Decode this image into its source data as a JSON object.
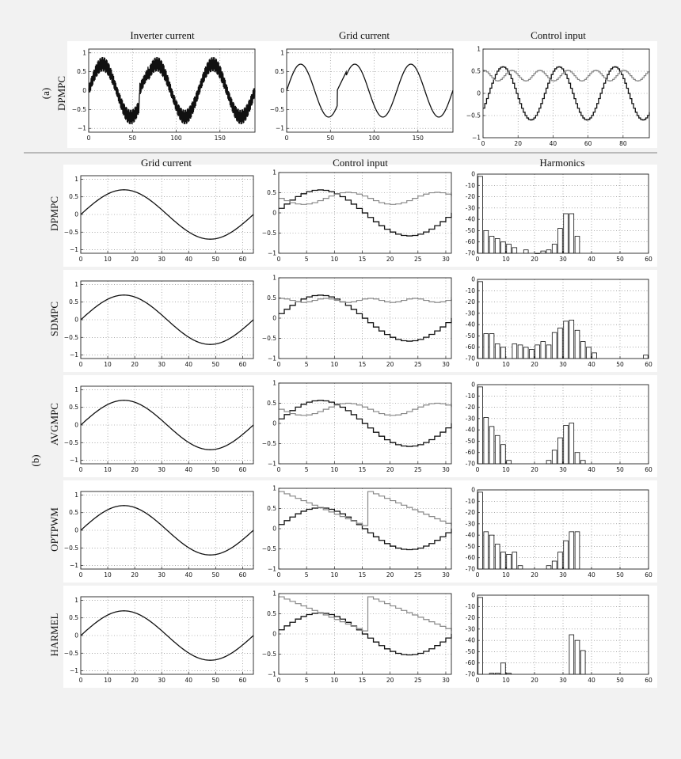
{
  "figure": {
    "section_labels": {
      "a": "(a)",
      "b": "(b)"
    },
    "top_column_titles": [
      "Inverter current",
      "Grid current",
      "Control input"
    ],
    "bottom_column_titles": [
      "Grid current",
      "Control input",
      "Harmonics"
    ],
    "methods_a": "DPMPC",
    "methods_b": [
      "DPMPC",
      "SDMPC",
      "AVGMPC",
      "OPTPWM",
      "HARMEL"
    ]
  },
  "chart_data": [
    {
      "id": "a-inverter",
      "type": "line",
      "title": "Inverter current",
      "row_label": "DPMPC",
      "xlim": [
        0,
        190
      ],
      "ylim": [
        -1.1,
        1.1
      ],
      "xticks": [
        0,
        50,
        100,
        150
      ],
      "yticks": [
        1,
        0.5,
        0,
        -0.5,
        -1
      ],
      "ytick_labels": [
        "1",
        "0.5",
        "0",
        "−0.5",
        "−1"
      ],
      "series": [
        {
          "color": "#111111",
          "form": "sine + switching ripple",
          "amplitude": 0.7,
          "period_samples": 64,
          "ripple_amplitude": 0.2,
          "fault": {
            "start": 58,
            "end": 68,
            "kind": "phase reset"
          }
        }
      ],
      "grid": true
    },
    {
      "id": "a-grid",
      "type": "line",
      "title": "Grid current",
      "xlim": [
        0,
        190
      ],
      "ylim": [
        -1.1,
        1.1
      ],
      "xticks": [
        0,
        50,
        100,
        150
      ],
      "yticks": [
        1,
        0.5,
        0,
        -0.5,
        -1
      ],
      "ytick_labels": [
        "1",
        "0.5",
        "0",
        "−0.5",
        "−1"
      ],
      "series": [
        {
          "color": "#111111",
          "form": "sine",
          "amplitude": 0.7,
          "period_samples": 64,
          "fault": {
            "start": 58,
            "end": 68,
            "kind": "phase reset"
          }
        }
      ],
      "grid": true
    },
    {
      "id": "a-control",
      "type": "line",
      "title": "Control input",
      "xlim": [
        0,
        95
      ],
      "ylim": [
        -1,
        1
      ],
      "xticks": [
        0,
        20,
        40,
        60,
        80
      ],
      "yticks": [
        1,
        0.5,
        0,
        -0.5,
        -1
      ],
      "ytick_labels": [
        "1",
        "0.5",
        "0",
        "−0.5",
        "−1"
      ],
      "series": [
        {
          "color": "#111111",
          "form": "staircase sine",
          "amplitude": 0.6,
          "period_samples": 32,
          "phase_shift": 4
        },
        {
          "color": "#888888",
          "form": "staircase ripple",
          "offset": 0.4,
          "amplitude": 0.12
        }
      ],
      "grid": true
    },
    {
      "id": "b-dpmpc-grid",
      "type": "line",
      "row_label": "DPMPC",
      "xlim": [
        0,
        64
      ],
      "ylim": [
        -1.1,
        1.1
      ],
      "xticks": [
        0,
        10,
        20,
        30,
        40,
        50,
        60
      ],
      "yticks": [
        1,
        0.5,
        0,
        -0.5,
        -1
      ],
      "ytick_labels": [
        "1",
        "0.5",
        "0",
        "−0.5",
        "−1"
      ],
      "series": [
        {
          "color": "#111111",
          "form": "sine",
          "amplitude": 0.7,
          "period_samples": 64
        }
      ],
      "grid": true
    },
    {
      "id": "b-dpmpc-control",
      "type": "line",
      "xlim": [
        0,
        31
      ],
      "ylim": [
        -1,
        1
      ],
      "xticks": [
        0,
        5,
        10,
        15,
        20,
        25,
        30
      ],
      "yticks": [
        1,
        0.5,
        0,
        -0.5,
        -1
      ],
      "ytick_labels": [
        "1",
        "0.5",
        "0",
        "−0.5",
        "−1"
      ],
      "series": [
        {
          "color": "#111111",
          "form": "staircase sine",
          "amplitude": 0.57,
          "period_samples": 32
        },
        {
          "color": "#888888",
          "form": "staircase ripple",
          "offset": 0.36,
          "amplitude": 0.15,
          "period_samples": 16,
          "phase_shift": 12
        }
      ],
      "grid": true
    },
    {
      "id": "b-dpmpc-harm",
      "type": "bar",
      "xlim": [
        0,
        60
      ],
      "ylim": [
        -70,
        0
      ],
      "xticks": [
        0,
        10,
        20,
        30,
        40,
        50,
        60
      ],
      "yticks": [
        0,
        -10,
        -20,
        -30,
        -40,
        -50,
        -60,
        -70
      ],
      "x": [
        1,
        3,
        5,
        7,
        9,
        11,
        13,
        17,
        21,
        23,
        25,
        27,
        29,
        31,
        33,
        35
      ],
      "values": [
        -2,
        -50,
        -55,
        -57,
        -60,
        -62,
        -65,
        -67,
        -70,
        -68,
        -67,
        -62,
        -48,
        -35,
        -35,
        -55
      ],
      "grid": true
    },
    {
      "id": "b-sdmpc-grid",
      "type": "line",
      "row_label": "SDMPC",
      "xlim": [
        0,
        64
      ],
      "ylim": [
        -1.1,
        1.1
      ],
      "xticks": [
        0,
        10,
        20,
        30,
        40,
        50,
        60
      ],
      "yticks": [
        1,
        0.5,
        0,
        -0.5,
        -1
      ],
      "ytick_labels": [
        "1",
        "0.5",
        "0",
        "−0.5",
        "−1"
      ],
      "series": [
        {
          "color": "#111111",
          "form": "sine",
          "amplitude": 0.7,
          "period_samples": 64
        }
      ],
      "grid": true
    },
    {
      "id": "b-sdmpc-control",
      "type": "line",
      "xlim": [
        0,
        31
      ],
      "ylim": [
        -1,
        1
      ],
      "xticks": [
        0,
        5,
        10,
        15,
        20,
        25,
        30
      ],
      "yticks": [
        1,
        0.5,
        0,
        -0.5,
        -1
      ],
      "ytick_labels": [
        "1",
        "0.5",
        "0",
        "−0.5",
        "−1"
      ],
      "series": [
        {
          "color": "#111111",
          "form": "staircase sine",
          "amplitude": 0.57,
          "period_samples": 32
        },
        {
          "color": "#888888",
          "form": "staircase ripple",
          "offset": 0.44,
          "amplitude": 0.05,
          "period_samples": 8
        }
      ],
      "grid": true
    },
    {
      "id": "b-sdmpc-harm",
      "type": "bar",
      "xlim": [
        0,
        60
      ],
      "ylim": [
        -70,
        0
      ],
      "xticks": [
        0,
        10,
        20,
        30,
        40,
        50,
        60
      ],
      "yticks": [
        0,
        -10,
        -20,
        -30,
        -40,
        -50,
        -60,
        -70
      ],
      "x": [
        1,
        3,
        5,
        7,
        9,
        13,
        15,
        17,
        19,
        21,
        23,
        25,
        27,
        29,
        31,
        33,
        35,
        37,
        39,
        41,
        59
      ],
      "values": [
        -2,
        -48,
        -48,
        -57,
        -60,
        -57,
        -58,
        -60,
        -62,
        -58,
        -55,
        -58,
        -47,
        -43,
        -37,
        -36,
        -45,
        -55,
        -60,
        -65,
        -67
      ],
      "grid": true
    },
    {
      "id": "b-avgmpc-grid",
      "type": "line",
      "row_label": "AVGMPC",
      "xlim": [
        0,
        64
      ],
      "ylim": [
        -1.1,
        1.1
      ],
      "xticks": [
        0,
        10,
        20,
        30,
        40,
        50,
        60
      ],
      "yticks": [
        1,
        0.5,
        0,
        -0.5,
        -1
      ],
      "ytick_labels": [
        "1",
        "0.5",
        "0",
        "−0.5",
        "−1"
      ],
      "series": [
        {
          "color": "#111111",
          "form": "sine",
          "amplitude": 0.7,
          "period_samples": 64
        }
      ],
      "grid": true
    },
    {
      "id": "b-avgmpc-control",
      "type": "line",
      "xlim": [
        0,
        31
      ],
      "ylim": [
        -1,
        1
      ],
      "xticks": [
        0,
        5,
        10,
        15,
        20,
        25,
        30
      ],
      "yticks": [
        1,
        0.5,
        0,
        -0.5,
        -1
      ],
      "ytick_labels": [
        "1",
        "0.5",
        "0",
        "−0.5",
        "−1"
      ],
      "series": [
        {
          "color": "#111111",
          "form": "staircase sine",
          "amplitude": 0.57,
          "period_samples": 32
        },
        {
          "color": "#888888",
          "form": "staircase ripple",
          "offset": 0.35,
          "amplitude": 0.15,
          "period_samples": 16,
          "phase_shift": 12
        }
      ],
      "grid": true
    },
    {
      "id": "b-avgmpc-harm",
      "type": "bar",
      "xlim": [
        0,
        60
      ],
      "ylim": [
        -70,
        0
      ],
      "xticks": [
        0,
        10,
        20,
        30,
        40,
        50,
        60
      ],
      "yticks": [
        0,
        -10,
        -20,
        -30,
        -40,
        -50,
        -60,
        -70
      ],
      "x": [
        1,
        3,
        5,
        7,
        9,
        11,
        25,
        27,
        29,
        31,
        33,
        35,
        37
      ],
      "values": [
        -2,
        -29,
        -37,
        -45,
        -53,
        -67,
        -67,
        -58,
        -47,
        -36,
        -34,
        -60,
        -67
      ],
      "grid": true
    },
    {
      "id": "b-optpwm-grid",
      "type": "line",
      "row_label": "OPTPWM",
      "xlim": [
        0,
        64
      ],
      "ylim": [
        -1.1,
        1.1
      ],
      "xticks": [
        0,
        10,
        20,
        30,
        40,
        50,
        60
      ],
      "yticks": [
        1,
        0.5,
        0,
        -0.5,
        -1
      ],
      "ytick_labels": [
        "1",
        "0.5",
        "0",
        "−0.5",
        "−1"
      ],
      "series": [
        {
          "color": "#111111",
          "form": "sine",
          "amplitude": 0.7,
          "period_samples": 64
        }
      ],
      "grid": true
    },
    {
      "id": "b-optpwm-control",
      "type": "line",
      "xlim": [
        0,
        31
      ],
      "ylim": [
        -1,
        1
      ],
      "xticks": [
        0,
        5,
        10,
        15,
        20,
        25,
        30
      ],
      "yticks": [
        1,
        0.5,
        0,
        -0.5,
        -1
      ],
      "ytick_labels": [
        "1",
        "0.5",
        "0",
        "−0.5",
        "−1"
      ],
      "series": [
        {
          "color": "#111111",
          "form": "staircase sine",
          "amplitude": 0.52,
          "period_samples": 32
        },
        {
          "color": "#888888",
          "form": "sawtooth staircase",
          "start": 0.92,
          "end": 0.02,
          "reset_at": 16
        }
      ],
      "grid": true
    },
    {
      "id": "b-optpwm-harm",
      "type": "bar",
      "xlim": [
        0,
        60
      ],
      "ylim": [
        -70,
        0
      ],
      "xticks": [
        0,
        10,
        20,
        30,
        40,
        50,
        60
      ],
      "yticks": [
        0,
        -10,
        -20,
        -30,
        -40,
        -50,
        -60,
        -70
      ],
      "x": [
        1,
        3,
        5,
        7,
        9,
        11,
        13,
        15,
        25,
        27,
        29,
        31,
        33,
        35
      ],
      "values": [
        -2,
        -37,
        -40,
        -48,
        -55,
        -57,
        -55,
        -67,
        -67,
        -63,
        -55,
        -45,
        -37,
        -37
      ],
      "grid": true
    },
    {
      "id": "b-harmel-grid",
      "type": "line",
      "row_label": "HARMEL",
      "xlim": [
        0,
        64
      ],
      "ylim": [
        -1.1,
        1.1
      ],
      "xticks": [
        0,
        10,
        20,
        30,
        40,
        50,
        60
      ],
      "yticks": [
        1,
        0.5,
        0,
        -0.5,
        -1
      ],
      "ytick_labels": [
        "1",
        "0.5",
        "0",
        "−0.5",
        "−1"
      ],
      "series": [
        {
          "color": "#111111",
          "form": "sine",
          "amplitude": 0.7,
          "period_samples": 64
        }
      ],
      "grid": true
    },
    {
      "id": "b-harmel-control",
      "type": "line",
      "xlim": [
        0,
        31
      ],
      "ylim": [
        -1,
        1
      ],
      "xticks": [
        0,
        5,
        10,
        15,
        20,
        25,
        30
      ],
      "yticks": [
        1,
        0.5,
        0,
        -0.5,
        -1
      ],
      "ytick_labels": [
        "1",
        "0.5",
        "0",
        "−0.5",
        "−1"
      ],
      "series": [
        {
          "color": "#111111",
          "form": "staircase sine",
          "amplitude": 0.52,
          "period_samples": 32
        },
        {
          "color": "#888888",
          "form": "sawtooth staircase",
          "start": 0.92,
          "end": 0.02,
          "reset_at": 16
        }
      ],
      "grid": true
    },
    {
      "id": "b-harmel-harm",
      "type": "bar",
      "xlim": [
        0,
        60
      ],
      "ylim": [
        -70,
        0
      ],
      "xticks": [
        0,
        10,
        20,
        30,
        40,
        50,
        60
      ],
      "yticks": [
        0,
        -10,
        -20,
        -30,
        -40,
        -50,
        -60,
        -70
      ],
      "x": [
        1,
        5,
        7,
        9,
        11,
        33,
        35,
        37
      ],
      "values": [
        -2,
        -69,
        -69,
        -60,
        -69,
        -35,
        -40,
        -49
      ],
      "grid": true
    }
  ]
}
